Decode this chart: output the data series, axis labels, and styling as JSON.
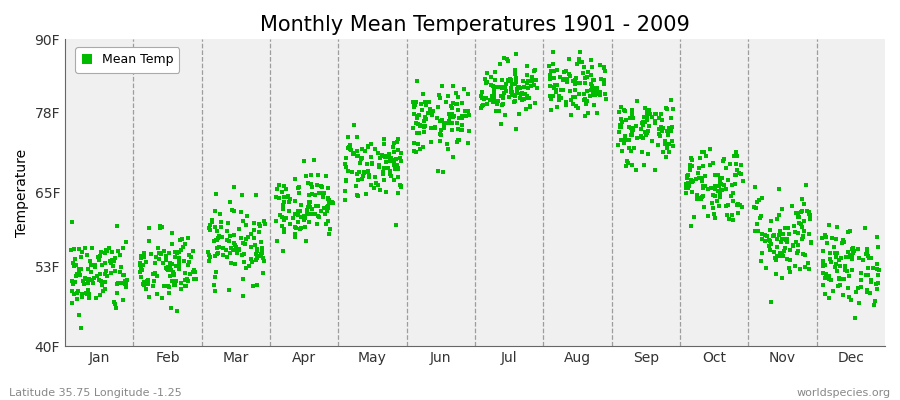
{
  "title": "Monthly Mean Temperatures 1901 - 2009",
  "ylabel": "Temperature",
  "yticks": [
    40,
    53,
    65,
    78,
    90
  ],
  "ytick_labels": [
    "40F",
    "53F",
    "65F",
    "78F",
    "90F"
  ],
  "ylim": [
    40,
    90
  ],
  "months": [
    "Jan",
    "Feb",
    "Mar",
    "Apr",
    "May",
    "Jun",
    "Jul",
    "Aug",
    "Sep",
    "Oct",
    "Nov",
    "Dec"
  ],
  "dot_color": "#00bb00",
  "legend_label": "Mean Temp",
  "bg_color": "#f0f0f0",
  "fig_bg_color": "#ffffff",
  "footer_left": "Latitude 35.75 Longitude -1.25",
  "footer_right": "worldspecies.org",
  "monthly_mean": [
    51.5,
    52.5,
    57.0,
    63.0,
    69.5,
    76.5,
    82.0,
    82.0,
    75.0,
    66.5,
    58.0,
    53.0
  ],
  "monthly_std": [
    3.2,
    3.2,
    3.2,
    2.8,
    2.8,
    2.8,
    2.3,
    2.3,
    2.8,
    3.2,
    3.8,
    3.2
  ],
  "n_years": 109,
  "marker_size": 5,
  "title_fontsize": 15
}
